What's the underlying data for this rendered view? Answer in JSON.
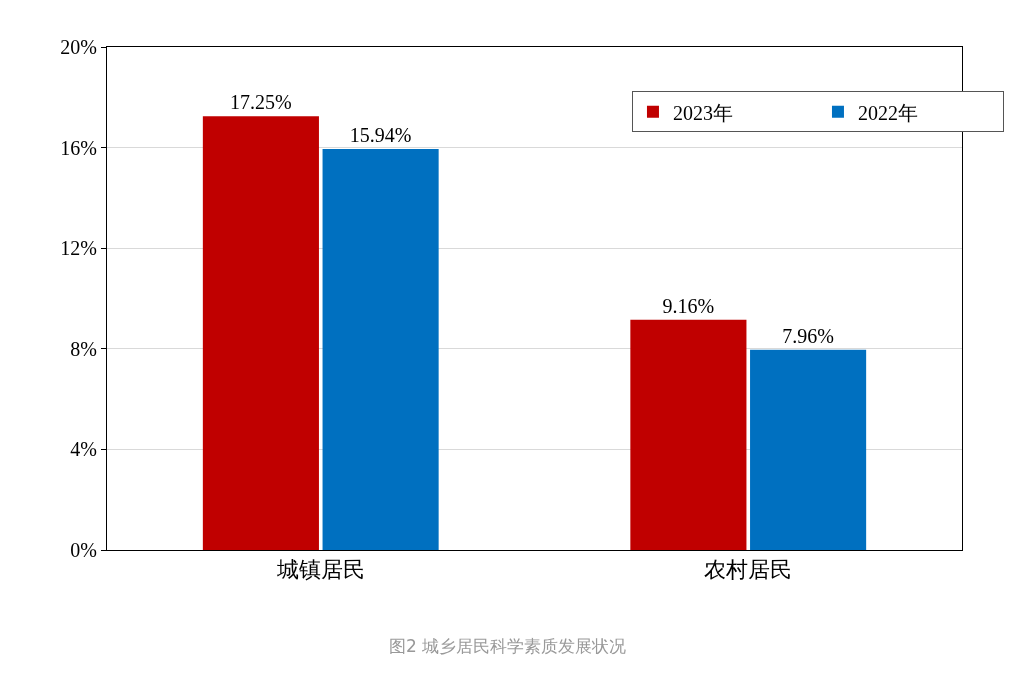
{
  "chart_data": {
    "type": "bar",
    "categories": [
      "城镇居民",
      "农村居民"
    ],
    "series": [
      {
        "name": "2023年",
        "color": "#c00000",
        "values": [
          17.25,
          9.16
        ],
        "value_labels": [
          "17.25%",
          "9.16%"
        ]
      },
      {
        "name": "2022年",
        "color": "#0070c0",
        "values": [
          15.94,
          7.96
        ],
        "value_labels": [
          "15.94%",
          "7.96%"
        ]
      }
    ],
    "ylim": [
      0,
      20
    ],
    "yticks": [
      {
        "value": 0,
        "label": "0%"
      },
      {
        "value": 4,
        "label": "4%"
      },
      {
        "value": 8,
        "label": "8%"
      },
      {
        "value": 12,
        "label": "12%"
      },
      {
        "value": 16,
        "label": "16%"
      },
      {
        "value": 20,
        "label": "20%"
      }
    ],
    "grid": "y",
    "legend": "top right",
    "annotations": [
      "图2 城乡居民科学素质发展状况"
    ]
  }
}
